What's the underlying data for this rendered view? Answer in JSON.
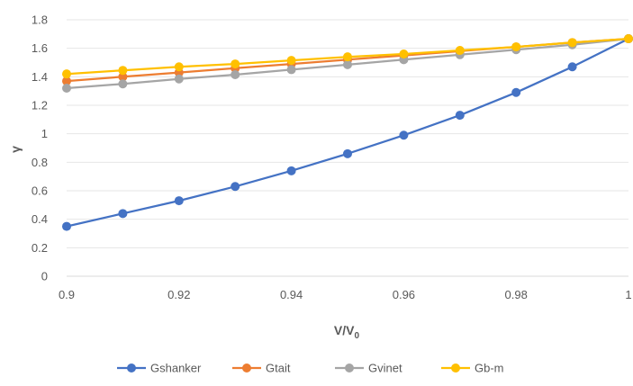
{
  "chart_data": {
    "type": "line",
    "title": "",
    "xlabel": "V/V",
    "xlabel_sub": "0",
    "ylabel": "γ",
    "xlim": [
      0.9,
      1.0
    ],
    "ylim": [
      0,
      1.8
    ],
    "x_ticks": [
      "0.9",
      "0.92",
      "0.94",
      "0.96",
      "0.98",
      "1"
    ],
    "y_ticks": [
      "0",
      "0.2",
      "0.4",
      "0.6",
      "0.8",
      "1",
      "1.2",
      "1.4",
      "1.6",
      "1.8"
    ],
    "x_tick_values": [
      0.9,
      0.92,
      0.94,
      0.96,
      0.98,
      1.0
    ],
    "y_tick_values": [
      0,
      0.2,
      0.4,
      0.6,
      0.8,
      1.0,
      1.2,
      1.4,
      1.6,
      1.8
    ],
    "grid": "horizontal",
    "legend_position": "bottom",
    "x": [
      0.9,
      0.91,
      0.92,
      0.93,
      0.94,
      0.95,
      0.96,
      0.97,
      0.98,
      0.99,
      1.0
    ],
    "series": [
      {
        "name": "Gshanker",
        "color": "#4472C4",
        "values": [
          0.35,
          0.44,
          0.53,
          0.63,
          0.74,
          0.86,
          0.99,
          1.13,
          1.29,
          1.47,
          1.667
        ]
      },
      {
        "name": "Gtait",
        "color": "#ED7D31",
        "values": [
          1.37,
          1.4,
          1.43,
          1.46,
          1.49,
          1.52,
          1.55,
          1.58,
          1.61,
          1.64,
          1.667
        ]
      },
      {
        "name": "Gvinet",
        "color": "#A5A5A5",
        "values": [
          1.32,
          1.35,
          1.385,
          1.415,
          1.45,
          1.485,
          1.52,
          1.555,
          1.59,
          1.625,
          1.667
        ]
      },
      {
        "name": "Gb-m",
        "color": "#FFC000",
        "values": [
          1.42,
          1.445,
          1.47,
          1.49,
          1.515,
          1.54,
          1.56,
          1.585,
          1.61,
          1.64,
          1.667
        ]
      }
    ]
  }
}
